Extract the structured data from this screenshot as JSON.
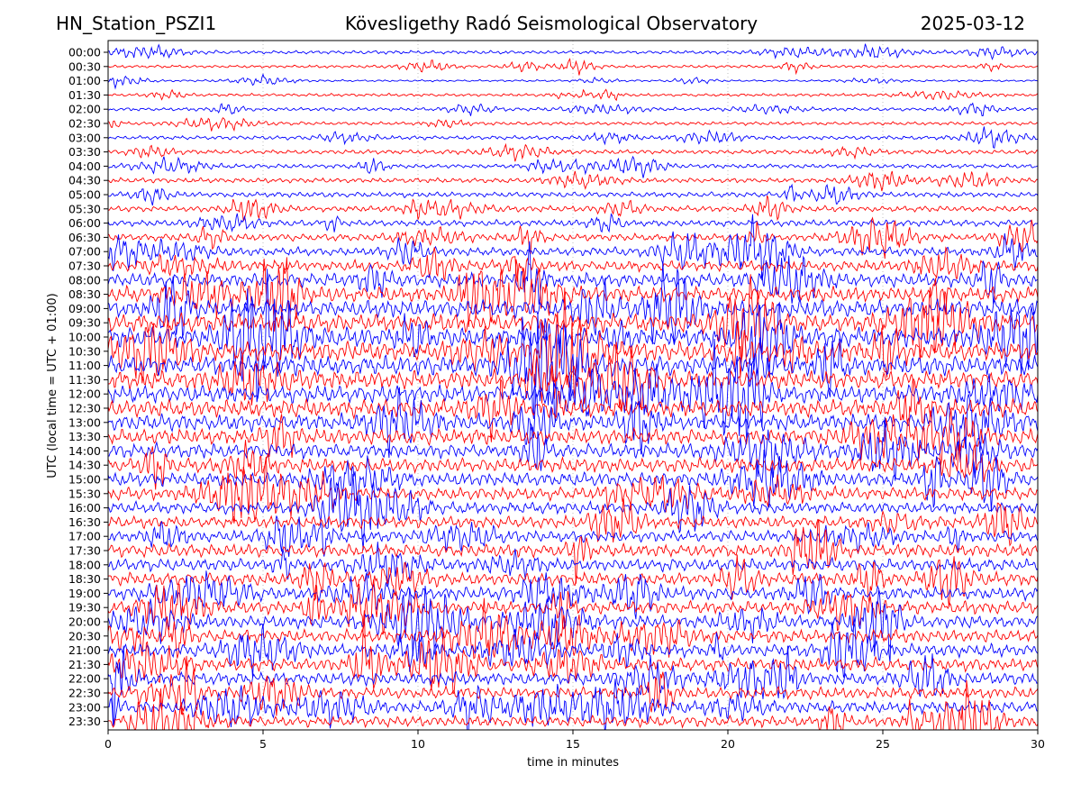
{
  "header": {
    "station": "HN_Station_PSZI1",
    "observatory": "Kövesligethy Radó Seismological Observatory",
    "date": "2025-03-12"
  },
  "chart_data": {
    "type": "line",
    "subtype": "helicorder",
    "xlabel": "time in minutes",
    "ylabel": "UTC (local time = UTC + 01:00)",
    "xlim": [
      0,
      30
    ],
    "xticks": [
      0,
      5,
      10,
      15,
      20,
      25,
      30
    ],
    "grid": "vertical-dotted",
    "trace_colors": [
      "#0000ff",
      "#ff0000"
    ],
    "rows": [
      "00:00",
      "00:30",
      "01:00",
      "01:30",
      "02:00",
      "02:30",
      "03:00",
      "03:30",
      "04:00",
      "04:30",
      "05:00",
      "05:30",
      "06:00",
      "06:30",
      "07:00",
      "07:30",
      "08:00",
      "08:30",
      "09:00",
      "09:30",
      "10:00",
      "10:30",
      "11:00",
      "11:30",
      "12:00",
      "12:30",
      "13:00",
      "13:30",
      "14:00",
      "14:30",
      "15:00",
      "15:30",
      "16:00",
      "16:30",
      "17:00",
      "17:30",
      "18:00",
      "18:30",
      "19:00",
      "19:30",
      "20:00",
      "20:30",
      "21:00",
      "21:30",
      "22:00",
      "22:30",
      "23:00",
      "23:30"
    ],
    "relative_amplitude": [
      0.35,
      0.3,
      0.2,
      0.3,
      0.35,
      0.35,
      0.4,
      0.45,
      0.45,
      0.5,
      0.55,
      0.6,
      0.65,
      0.75,
      0.9,
      1.1,
      1.4,
      1.6,
      1.8,
      1.9,
      2.0,
      2.0,
      2.0,
      1.9,
      1.8,
      1.8,
      1.7,
      1.6,
      1.5,
      1.5,
      1.4,
      1.3,
      1.2,
      1.2,
      1.2,
      1.3,
      1.3,
      1.3,
      1.3,
      1.3,
      1.3,
      1.3,
      1.3,
      1.3,
      1.3,
      1.2,
      1.2,
      1.1
    ]
  }
}
